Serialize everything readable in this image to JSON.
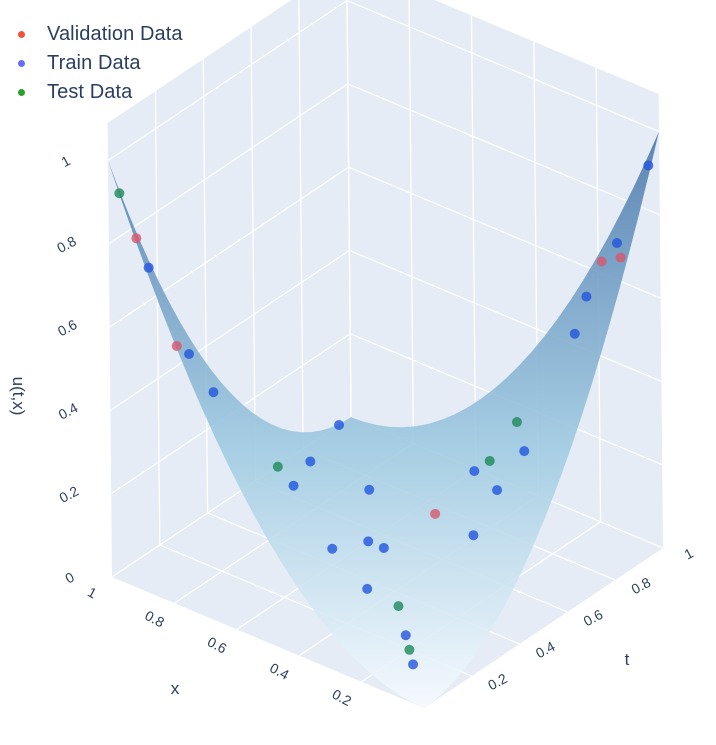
{
  "chart_data": {
    "type": "scatter",
    "subtype": "scatter3d-with-surface",
    "title": "",
    "legend": {
      "placement": "top-left",
      "entries": [
        {
          "name": "Validation Data",
          "color": "#ef553b"
        },
        {
          "name": "Train Data",
          "color": "#636efa"
        },
        {
          "name": "Test Data",
          "color": "#00cc96"
        }
      ]
    },
    "axes": {
      "x": {
        "title": "x",
        "range": [
          0,
          1
        ],
        "tick_labels": [
          "0.2",
          "0.4",
          "0.6",
          "0.8",
          "1"
        ],
        "tick_values": [
          0.2,
          0.4,
          0.6,
          0.8,
          1
        ]
      },
      "t": {
        "title": "t",
        "range": [
          0,
          1
        ],
        "tick_labels": [
          "0.2",
          "0.4",
          "0.6",
          "0.8",
          "1"
        ],
        "tick_values": [
          0.2,
          0.4,
          0.6,
          0.8,
          1
        ]
      },
      "u": {
        "title": "u(t,x)",
        "range": [
          0,
          1
        ],
        "tick_labels": [
          "0",
          "0.2",
          "0.4",
          "0.6",
          "0.8",
          "1"
        ],
        "tick_values": [
          0,
          0.2,
          0.4,
          0.6,
          0.8,
          1
        ]
      }
    },
    "surface": {
      "description_formula": "u = (x - t)^2",
      "colorscale": [
        "#f7fbff",
        "#9ecae1",
        "#4a7ab0"
      ]
    },
    "series": [
      {
        "name": "Validation Data",
        "color": "#ef553b",
        "points": [
          {
            "t": 0.05,
            "x": 0.95,
            "u": 0.81
          },
          {
            "t": 0.9,
            "x": 0.05,
            "u": 0.72
          },
          {
            "t": 0.7,
            "x": 0.5,
            "u": 0.04
          },
          {
            "t": 0.95,
            "x": 0.15,
            "u": 0.66
          },
          {
            "t": 0.02,
            "x": 0.8,
            "u": 0.61
          }
        ]
      },
      {
        "name": "Train Data",
        "color": "#636efa",
        "points": [
          {
            "t": 0.1,
            "x": 0.95,
            "u": 0.72
          },
          {
            "t": 0.95,
            "x": 0.1,
            "u": 0.72
          },
          {
            "t": 0.98,
            "x": 0.02,
            "u": 0.92
          },
          {
            "t": 0.2,
            "x": 0.9,
            "u": 0.49
          },
          {
            "t": 0.95,
            "x": 0.2,
            "u": 0.56
          },
          {
            "t": 0.5,
            "x": 0.8,
            "u": 0.09
          },
          {
            "t": 0.7,
            "x": 0.3,
            "u": 0.16
          },
          {
            "t": 0.75,
            "x": 0.25,
            "u": 0.25
          },
          {
            "t": 0.55,
            "x": 0.55,
            "u": 0.0
          },
          {
            "t": 0.3,
            "x": 0.9,
            "u": 0.36
          },
          {
            "t": 0.8,
            "x": 0.45,
            "u": 0.12
          },
          {
            "t": 0.6,
            "x": 0.3,
            "u": 0.09
          },
          {
            "t": 0.95,
            "x": 1.0,
            "u": 0.0
          },
          {
            "t": 0.55,
            "x": 0.6,
            "u": 0.0
          },
          {
            "t": 0.4,
            "x": 0.6,
            "u": 0.04
          },
          {
            "t": 0.35,
            "x": 0.45,
            "u": 0.01
          },
          {
            "t": 0.7,
            "x": 0.9,
            "u": 0.04
          },
          {
            "t": 0.75,
            "x": 0.75,
            "u": 0.0
          },
          {
            "t": 0.25,
            "x": 0.25,
            "u": 0.0
          },
          {
            "t": 0.15,
            "x": 0.15,
            "u": 0.0
          },
          {
            "t": 0.9,
            "x": 0.2,
            "u": 0.49
          }
        ]
      },
      {
        "name": "Test Data",
        "color": "#00cc96",
        "points": [
          {
            "t": 0.02,
            "x": 0.98,
            "u": 0.92
          },
          {
            "t": 0.85,
            "x": 0.35,
            "u": 0.25
          },
          {
            "t": 0.8,
            "x": 0.4,
            "u": 0.16
          },
          {
            "t": 0.5,
            "x": 0.85,
            "u": 0.12
          },
          {
            "t": 0.35,
            "x": 0.35,
            "u": 0.0
          },
          {
            "t": 0.2,
            "x": 0.2,
            "u": 0.0
          }
        ]
      }
    ]
  }
}
